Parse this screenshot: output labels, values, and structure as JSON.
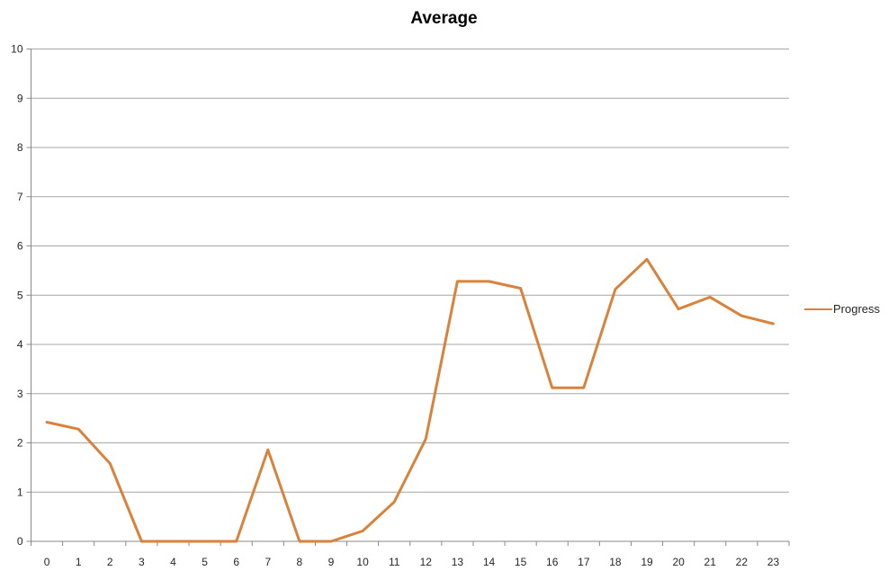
{
  "chart_data": {
    "type": "line",
    "title": "Average",
    "categories": [
      "0",
      "1",
      "2",
      "3",
      "4",
      "5",
      "6",
      "7",
      "8",
      "9",
      "10",
      "11",
      "12",
      "13",
      "14",
      "15",
      "16",
      "17",
      "18",
      "19",
      "20",
      "21",
      "22",
      "23"
    ],
    "series": [
      {
        "name": "Progress",
        "color": "#D9823C",
        "values": [
          2.42,
          2.28,
          1.58,
          0,
          0,
          0,
          0,
          1.86,
          0,
          0,
          0.21,
          0.8,
          2.08,
          5.28,
          5.28,
          5.14,
          3.12,
          3.12,
          5.12,
          5.73,
          4.72,
          4.96,
          4.58,
          4.42
        ]
      }
    ],
    "xlabel": "",
    "ylabel": "",
    "ylim": [
      0,
      10
    ],
    "yticks": [
      0,
      1,
      2,
      3,
      4,
      5,
      6,
      7,
      8,
      9,
      10
    ],
    "grid": true,
    "legend_position": "right"
  },
  "colors": {
    "line": "#D9823C",
    "gridline": "#A6A6A6",
    "axis": "#898989",
    "tick_text": "#262626",
    "title_text": "#000000",
    "background": "#FFFFFF"
  }
}
